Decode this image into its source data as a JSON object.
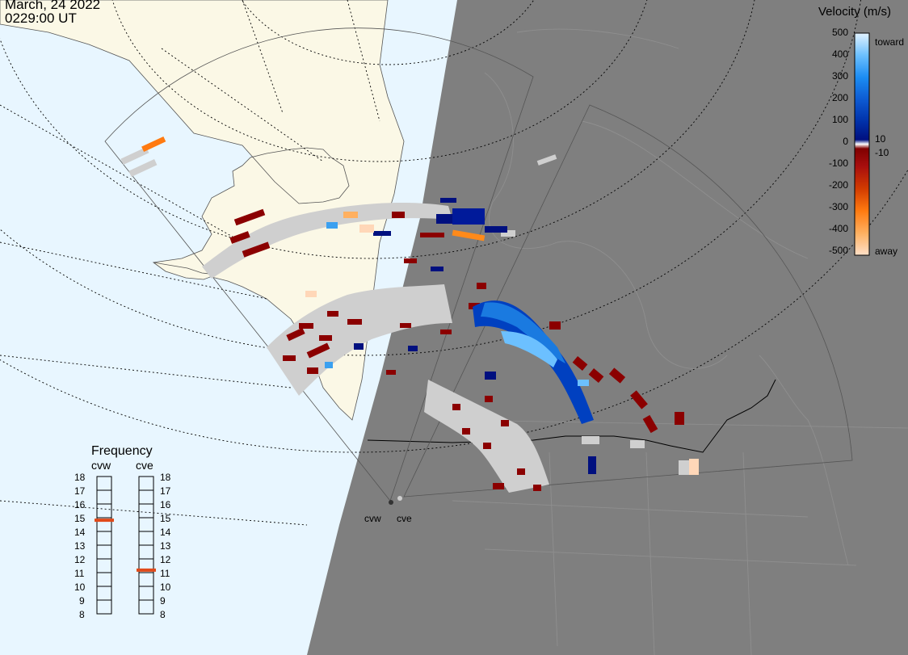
{
  "header": {
    "date": "March, 24 2022",
    "time": "0229:00 UT"
  },
  "colorbar": {
    "title": "Velocity (m/s)",
    "ticks": [
      "500",
      "400",
      "300",
      "200",
      "100",
      "0",
      "-100",
      "-200",
      "-300",
      "-400",
      "-500"
    ],
    "inner_ticks": [
      "10",
      "-10"
    ],
    "toward_label": "toward",
    "away_label": "away"
  },
  "frequency": {
    "title": "Frequency",
    "columns": [
      {
        "name": "cvw",
        "value_mhz": 15
      },
      {
        "name": "cve",
        "value_mhz": 11
      }
    ],
    "ticks": [
      "18",
      "17",
      "16",
      "15",
      "14",
      "13",
      "12",
      "11",
      "10",
      "9",
      "8"
    ]
  },
  "sites": [
    {
      "name": "cvw"
    },
    {
      "name": "cve"
    }
  ],
  "colors": {
    "ocean": "#e8f6ff",
    "land_day": "#fbf8e6",
    "night": "#7f7f7f",
    "gs_scatter": "#cfcfcf",
    "away_strong": "#8b0000",
    "toward_strong": "#00107f",
    "toward_light": "#3aa0f0",
    "away_orange": "#ff8a1a",
    "away_pale": "#ffd7b8"
  }
}
